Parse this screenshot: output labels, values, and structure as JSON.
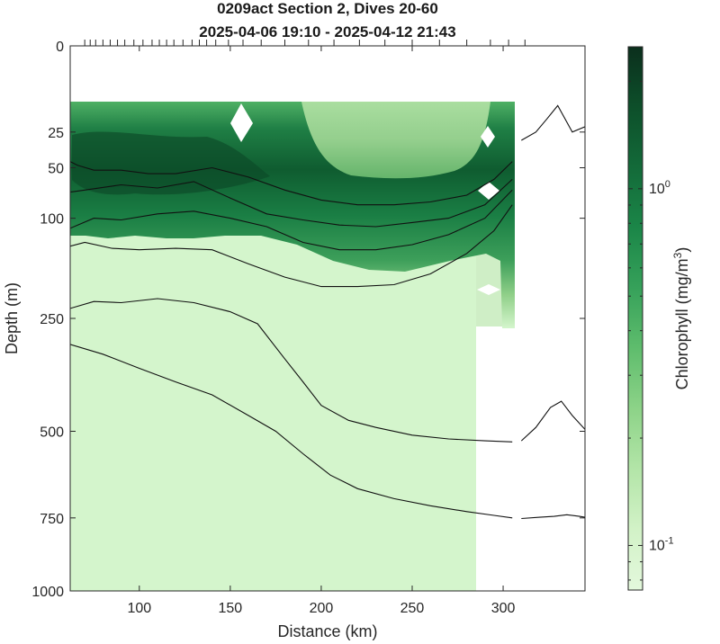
{
  "chart_data": {
    "type": "heatmap",
    "title": "0209act Section 2, Dives 20-60",
    "subtitle": "2025-04-06 19:10 - 2025-04-12 21:43",
    "xlabel": "Distance (km)",
    "ylabel": "Depth (m)",
    "colorbar_label": "Chlorophyll (mg/m",
    "colorbar_label_sup": "3",
    "colorbar_label_close": ")",
    "xlim": [
      62,
      345
    ],
    "ylim_depth": [
      0,
      1000
    ],
    "y_scale": "sqrt",
    "x_ticks": [
      100,
      150,
      200,
      250,
      300
    ],
    "x_tick_labels": [
      "100",
      "150",
      "200",
      "250",
      "300"
    ],
    "y_ticks": [
      0,
      25,
      50,
      100,
      250,
      500,
      750,
      1000
    ],
    "y_tick_labels": [
      "0",
      "25",
      "50",
      "100",
      "250",
      "500",
      "750",
      "1000"
    ],
    "colorbar_scale": "log",
    "colorbar_range": [
      0.075,
      2.5
    ],
    "colorbar_ticks": [
      1,
      0.1
    ],
    "colorbar_tick_base": "10",
    "colorbar_tick_exps": [
      "0",
      "-1"
    ],
    "colormap": [
      "#e3f8dc",
      "#d2f2c7",
      "#b3e5a8",
      "#8dd388",
      "#5fbd6d",
      "#36a15a",
      "#1b8648",
      "#136a39",
      "#0d4f2a",
      "#0b2f1d"
    ],
    "background_color": "#d4f5cc",
    "dive_positions_km": [
      70,
      73,
      76,
      80,
      84,
      88,
      92,
      97,
      102,
      107,
      111,
      115,
      119,
      124,
      129,
      133,
      137,
      142,
      149,
      157,
      167,
      180,
      193,
      207,
      221,
      235,
      250,
      265,
      280,
      293,
      303,
      312
    ],
    "contour_lines": [
      {
        "x": [
          62,
          66,
          75,
          90,
          105,
          120,
          140,
          160,
          180,
          200,
          220,
          240,
          260,
          280,
          295,
          305
        ],
        "depth": [
          45,
          48,
          52,
          52,
          55,
          55,
          50,
          58,
          70,
          80,
          85,
          85,
          82,
          75,
          60,
          45
        ]
      },
      {
        "x": [
          62,
          70,
          90,
          110,
          130,
          150,
          170,
          190,
          210,
          230,
          250,
          270,
          290,
          305
        ],
        "depth": [
          72,
          70,
          65,
          68,
          62,
          78,
          95,
          102,
          108,
          110,
          105,
          100,
          85,
          60
        ]
      },
      {
        "x": [
          62,
          75,
          90,
          110,
          130,
          150,
          170,
          190,
          210,
          230,
          250,
          270,
          290,
          305
        ],
        "depth": [
          112,
          100,
          102,
          95,
          92,
          100,
          110,
          130,
          140,
          140,
          133,
          120,
          100,
          70
        ]
      },
      {
        "x": [
          62,
          70,
          85,
          100,
          120,
          140,
          160,
          180,
          200,
          220,
          240,
          260,
          280,
          295,
          305
        ],
        "depth": [
          135,
          130,
          138,
          140,
          138,
          140,
          160,
          180,
          195,
          195,
          192,
          175,
          145,
          115,
          85
        ]
      },
      {
        "x": [
          62,
          75,
          90,
          110,
          130,
          150,
          165,
          180,
          190,
          200,
          215,
          230,
          250,
          270,
          290,
          305
        ],
        "depth": [
          232,
          220,
          222,
          215,
          222,
          238,
          260,
          330,
          380,
          435,
          472,
          490,
          510,
          520,
          525,
          528
        ]
      },
      {
        "x": [
          62,
          80,
          100,
          120,
          140,
          160,
          175,
          190,
          205,
          220,
          240,
          260,
          280,
          295,
          305
        ],
        "depth": [
          300,
          320,
          350,
          380,
          410,
          460,
          500,
          560,
          620,
          660,
          690,
          712,
          730,
          742,
          750
        ]
      }
    ],
    "contour_tails": [
      {
        "x": [
          310,
          318,
          324,
          330,
          338,
          345
        ],
        "depth": [
          30,
          25,
          18,
          12,
          25,
          22
        ]
      },
      {
        "x": [
          310,
          318,
          326,
          332,
          338,
          345
        ],
        "depth": [
          525,
          490,
          440,
          425,
          460,
          495
        ]
      },
      {
        "x": [
          310,
          320,
          328,
          335,
          342,
          345
        ],
        "depth": [
          752,
          748,
          745,
          740,
          745,
          748
        ]
      }
    ]
  }
}
